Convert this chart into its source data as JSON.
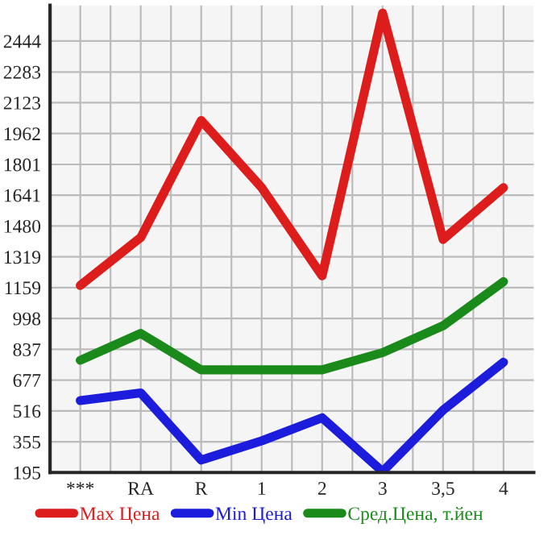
{
  "chart_data": {
    "type": "line",
    "categories": [
      "***",
      "RA",
      "R",
      "1",
      "2",
      "3",
      "3,5",
      "4"
    ],
    "series": [
      {
        "name": "Max Цена",
        "color": "#dd1c1c",
        "values": [
          1170,
          1420,
          2030,
          1680,
          1220,
          2590,
          1410,
          1680
        ]
      },
      {
        "name": "Min Цена",
        "color": "#1c1cdd",
        "values": [
          570,
          610,
          260,
          360,
          480,
          200,
          520,
          770
        ]
      },
      {
        "name": "Сред.Цена, т.йен",
        "color": "#1a8a1a",
        "values": [
          780,
          920,
          730,
          730,
          730,
          820,
          960,
          1190
        ]
      }
    ],
    "ylim": [
      195,
      2630
    ],
    "yticks": [
      195,
      355,
      516,
      677,
      837,
      998,
      1159,
      1319,
      1480,
      1641,
      1801,
      1962,
      2123,
      2283,
      2444
    ],
    "grid": true,
    "legend": "bottom",
    "marker": "none",
    "line_style": "solid"
  }
}
